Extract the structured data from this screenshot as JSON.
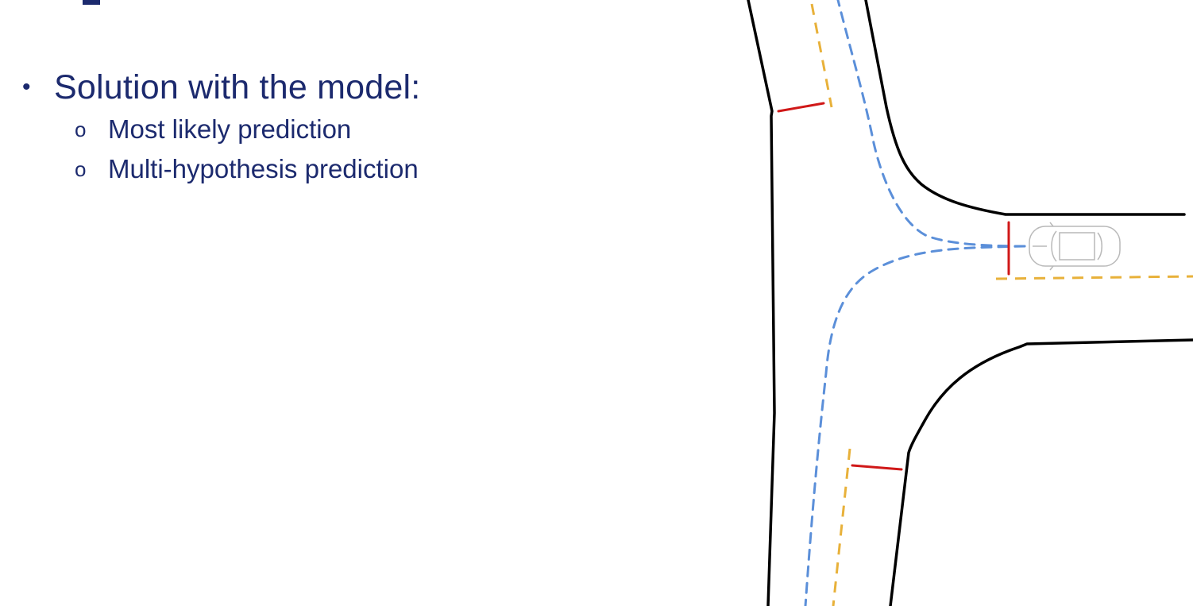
{
  "slide": {
    "bullet_marker": "•",
    "bullet": "Solution with the model:",
    "sub_marker": "o",
    "sub_items": [
      "Most likely prediction",
      "Multi-hypothesis prediction"
    ]
  },
  "colors": {
    "text": "#1c2a6e",
    "road_edge": "#000000",
    "lane_marking": "#e8b13a",
    "predicted_path": "#5b8fd9",
    "stop_line": "#d01818",
    "vehicle_outline": "#b9b9b9"
  },
  "icons": {
    "vehicle": "car-top-view-icon"
  }
}
